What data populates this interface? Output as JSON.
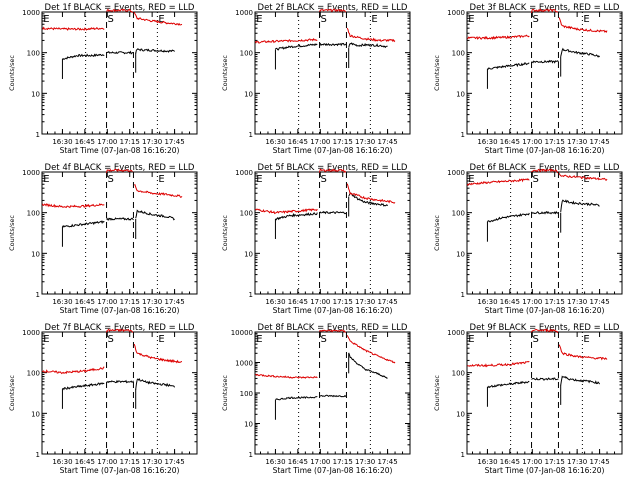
{
  "colors": {
    "events": "#000000",
    "lld": "#dd0000",
    "axis": "#000000",
    "background": "#ffffff"
  },
  "shared": {
    "ylabel": "Counts/sec",
    "xlabel": "Start Time (07-Jan-08 16:16:20)",
    "xticks": [
      "16:30",
      "16:45",
      "17:00",
      "17:15",
      "17:30",
      "17:45"
    ],
    "xtick_minutes": [
      30,
      45,
      60,
      75,
      90,
      105
    ],
    "xlim_minutes": [
      16.33,
      120
    ],
    "marker_labels": [
      "E",
      "S",
      "E"
    ],
    "marker_minutes": [
      16.5,
      59.5,
      93.5
    ],
    "dashed_vlines_minutes": [
      59.5,
      77.5
    ],
    "dotted_vlines_minutes": [
      45.5,
      93.5
    ]
  },
  "chart_data": [
    {
      "type": "line",
      "title": "Det 1f BLACK = Events, RED = LLD",
      "yscale": "log",
      "ylim": [
        1,
        1000
      ],
      "yticks": [
        "1",
        "10",
        "100",
        "1000"
      ],
      "series": [
        {
          "name": "Events",
          "segments": [
            {
              "x": [
                30,
                40,
                50,
                58
              ],
              "y": [
                70,
                85,
                85,
                90
              ]
            },
            {
              "x": [
                59.5,
                77.5
              ],
              "y": [
                100,
                100
              ]
            },
            {
              "x": [
                79,
                80,
                85,
                90,
                100,
                105
              ],
              "y": [
                100,
                120,
                115,
                115,
                110,
                110
              ]
            }
          ]
        },
        {
          "name": "LLD",
          "segments": [
            {
              "x": [
                16.5,
                30,
                45,
                58
              ],
              "y": [
                400,
                380,
                380,
                400
              ]
            },
            {
              "x": [
                59.5,
                60,
                75,
                77
              ],
              "y": [
                1000,
                1100,
                1100,
                1000
              ]
            },
            {
              "x": [
                78,
                80,
                90,
                100,
                110
              ],
              "y": [
                950,
                700,
                600,
                540,
                500
              ]
            }
          ]
        }
      ]
    },
    {
      "type": "line",
      "title": "Det 2f BLACK = Events, RED = LLD",
      "yscale": "log",
      "ylim": [
        1,
        1000
      ],
      "yticks": [
        "1",
        "10",
        "100",
        "1000"
      ],
      "series": [
        {
          "name": "Events",
          "segments": [
            {
              "x": [
                30,
                40,
                50,
                58
              ],
              "y": [
                120,
                140,
                150,
                160
              ]
            },
            {
              "x": [
                59.5,
                77.5
              ],
              "y": [
                160,
                160
              ]
            },
            {
              "x": [
                79,
                80,
                85,
                90,
                100,
                105
              ],
              "y": [
                130,
                170,
                150,
                155,
                150,
                140
              ]
            }
          ]
        },
        {
          "name": "LLD",
          "segments": [
            {
              "x": [
                16.5,
                30,
                45,
                58
              ],
              "y": [
                180,
                190,
                200,
                210
              ]
            },
            {
              "x": [
                59.5,
                60,
                75,
                77
              ],
              "y": [
                1000,
                1100,
                1100,
                1000
              ]
            },
            {
              "x": [
                78,
                80,
                90,
                100,
                110
              ],
              "y": [
                400,
                260,
                220,
                200,
                200
              ]
            }
          ]
        }
      ]
    },
    {
      "type": "line",
      "title": "Det 3f BLACK = Events, RED = LLD",
      "yscale": "log",
      "ylim": [
        1,
        1000
      ],
      "yticks": [
        "1",
        "10",
        "100",
        "1000"
      ],
      "series": [
        {
          "name": "Events",
          "segments": [
            {
              "x": [
                30,
                40,
                50,
                58
              ],
              "y": [
                40,
                45,
                50,
                55
              ]
            },
            {
              "x": [
                59.5,
                77.5
              ],
              "y": [
                60,
                60
              ]
            },
            {
              "x": [
                79,
                80,
                85,
                90,
                100,
                105
              ],
              "y": [
                80,
                120,
                110,
                100,
                90,
                80
              ]
            }
          ]
        },
        {
          "name": "LLD",
          "segments": [
            {
              "x": [
                16.5,
                30,
                45,
                58
              ],
              "y": [
                230,
                230,
                240,
                260
              ]
            },
            {
              "x": [
                59.5,
                60,
                75,
                77
              ],
              "y": [
                1000,
                1100,
                1100,
                1000
              ]
            },
            {
              "x": [
                78,
                80,
                90,
                100,
                110
              ],
              "y": [
                700,
                450,
                380,
                350,
                330
              ]
            }
          ]
        }
      ]
    },
    {
      "type": "line",
      "title": "Det 4f BLACK = Events, RED = LLD",
      "yscale": "log",
      "ylim": [
        1,
        1000
      ],
      "yticks": [
        "1",
        "10",
        "100",
        "1000"
      ],
      "series": [
        {
          "name": "Events",
          "segments": [
            {
              "x": [
                30,
                40,
                50,
                58
              ],
              "y": [
                45,
                50,
                55,
                60
              ]
            },
            {
              "x": [
                59.5,
                77.5
              ],
              "y": [
                70,
                70
              ]
            },
            {
              "x": [
                79,
                80,
                85,
                90,
                100,
                105
              ],
              "y": [
                70,
                110,
                100,
                90,
                80,
                70
              ]
            }
          ]
        },
        {
          "name": "LLD",
          "segments": [
            {
              "x": [
                16.5,
                30,
                45,
                58
              ],
              "y": [
                160,
                140,
                145,
                160
              ]
            },
            {
              "x": [
                59.5,
                60,
                75,
                77
              ],
              "y": [
                1000,
                1100,
                1100,
                1000
              ]
            },
            {
              "x": [
                78,
                80,
                90,
                100,
                110
              ],
              "y": [
                500,
                350,
                300,
                280,
                250
              ]
            }
          ]
        }
      ]
    },
    {
      "type": "line",
      "title": "Det 5f BLACK = Events, RED = LLD",
      "yscale": "log",
      "ylim": [
        1,
        1000
      ],
      "yticks": [
        "1",
        "10",
        "100",
        "1000"
      ],
      "series": [
        {
          "name": "Events",
          "segments": [
            {
              "x": [
                30,
                40,
                50,
                58
              ],
              "y": [
                70,
                85,
                90,
                95
              ]
            },
            {
              "x": [
                59.5,
                77.5
              ],
              "y": [
                100,
                100
              ]
            },
            {
              "x": [
                79,
                80,
                85,
                90,
                100,
                105
              ],
              "y": [
                250,
                300,
                220,
                180,
                160,
                150
              ]
            }
          ]
        },
        {
          "name": "LLD",
          "segments": [
            {
              "x": [
                16.5,
                30,
                45,
                58
              ],
              "y": [
                120,
                100,
                110,
                120
              ]
            },
            {
              "x": [
                59.5,
                60,
                75,
                77
              ],
              "y": [
                1000,
                1100,
                1100,
                1000
              ]
            },
            {
              "x": [
                78,
                80,
                90,
                100,
                110
              ],
              "y": [
                500,
                300,
                230,
                200,
                180
              ]
            }
          ]
        }
      ]
    },
    {
      "type": "line",
      "title": "Det 6f BLACK = Events, RED = LLD",
      "yscale": "log",
      "ylim": [
        1,
        1000
      ],
      "yticks": [
        "1",
        "10",
        "100",
        "1000"
      ],
      "series": [
        {
          "name": "Events",
          "segments": [
            {
              "x": [
                30,
                40,
                50,
                58
              ],
              "y": [
                60,
                75,
                85,
                95
              ]
            },
            {
              "x": [
                59.5,
                77.5
              ],
              "y": [
                100,
                100
              ]
            },
            {
              "x": [
                79,
                80,
                85,
                90,
                100,
                105
              ],
              "y": [
                100,
                200,
                180,
                170,
                160,
                150
              ]
            }
          ]
        },
        {
          "name": "LLD",
          "segments": [
            {
              "x": [
                16.5,
                30,
                45,
                58
              ],
              "y": [
                500,
                550,
                600,
                650
              ]
            },
            {
              "x": [
                59.5,
                60,
                75,
                77
              ],
              "y": [
                1000,
                1100,
                1100,
                1000
              ]
            },
            {
              "x": [
                78,
                80,
                90,
                100,
                110
              ],
              "y": [
                900,
                800,
                750,
                700,
                650
              ]
            }
          ]
        }
      ]
    },
    {
      "type": "line",
      "title": "Det 7f BLACK = Events, RED = LLD",
      "yscale": "log",
      "ylim": [
        1,
        1000
      ],
      "yticks": [
        "1",
        "10",
        "100",
        "1000"
      ],
      "series": [
        {
          "name": "Events",
          "segments": [
            {
              "x": [
                30,
                40,
                50,
                58
              ],
              "y": [
                40,
                45,
                50,
                55
              ]
            },
            {
              "x": [
                59.5,
                77.5
              ],
              "y": [
                60,
                60
              ]
            },
            {
              "x": [
                79,
                80,
                85,
                90,
                100,
                105
              ],
              "y": [
                40,
                70,
                60,
                55,
                50,
                45
              ]
            }
          ]
        },
        {
          "name": "LLD",
          "segments": [
            {
              "x": [
                16.5,
                30,
                45,
                58
              ],
              "y": [
                110,
                100,
                110,
                130
              ]
            },
            {
              "x": [
                59.5,
                60,
                75,
                77
              ],
              "y": [
                1000,
                1100,
                1100,
                1000
              ]
            },
            {
              "x": [
                78,
                80,
                90,
                100,
                110
              ],
              "y": [
                500,
                300,
                230,
                200,
                180
              ]
            }
          ]
        }
      ]
    },
    {
      "type": "line",
      "title": "Det 8f BLACK = Events, RED = LLD",
      "yscale": "log",
      "ylim": [
        1,
        10000
      ],
      "yticks": [
        "1",
        "10",
        "100",
        "1000",
        "10000"
      ],
      "series": [
        {
          "name": "Events",
          "segments": [
            {
              "x": [
                30,
                40,
                50,
                58
              ],
              "y": [
                60,
                70,
                70,
                75
              ]
            },
            {
              "x": [
                59.5,
                77.5
              ],
              "y": [
                80,
                80
              ]
            },
            {
              "x": [
                79,
                80,
                85,
                90,
                100,
                105
              ],
              "y": [
                2000,
                1500,
                900,
                600,
                400,
                300
              ]
            }
          ]
        },
        {
          "name": "LLD",
          "segments": [
            {
              "x": [
                16.5,
                30,
                45,
                58
              ],
              "y": [
                400,
                350,
                320,
                330
              ]
            },
            {
              "x": [
                59.5,
                60,
                75,
                77
              ],
              "y": [
                10000,
                11000,
                11000,
                10000
              ]
            },
            {
              "x": [
                78,
                80,
                90,
                100,
                110
              ],
              "y": [
                8000,
                5000,
                2500,
                1500,
                1000
              ]
            }
          ]
        }
      ]
    },
    {
      "type": "line",
      "title": "Det 9f BLACK = Events, RED = LLD",
      "yscale": "log",
      "ylim": [
        1,
        1000
      ],
      "yticks": [
        "1",
        "10",
        "100",
        "1000"
      ],
      "series": [
        {
          "name": "Events",
          "segments": [
            {
              "x": [
                30,
                40,
                50,
                58
              ],
              "y": [
                45,
                50,
                55,
                60
              ]
            },
            {
              "x": [
                59.5,
                77.5
              ],
              "y": [
                70,
                70
              ]
            },
            {
              "x": [
                79,
                80,
                85,
                90,
                100,
                105
              ],
              "y": [
                50,
                80,
                70,
                65,
                60,
                55
              ]
            }
          ]
        },
        {
          "name": "LLD",
          "segments": [
            {
              "x": [
                16.5,
                30,
                45,
                58
              ],
              "y": [
                150,
                150,
                160,
                180
              ]
            },
            {
              "x": [
                59.5,
                60,
                75,
                77
              ],
              "y": [
                1000,
                1100,
                1100,
                1000
              ]
            },
            {
              "x": [
                78,
                80,
                90,
                100,
                110
              ],
              "y": [
                500,
                300,
                250,
                230,
                220
              ]
            }
          ]
        }
      ]
    }
  ]
}
